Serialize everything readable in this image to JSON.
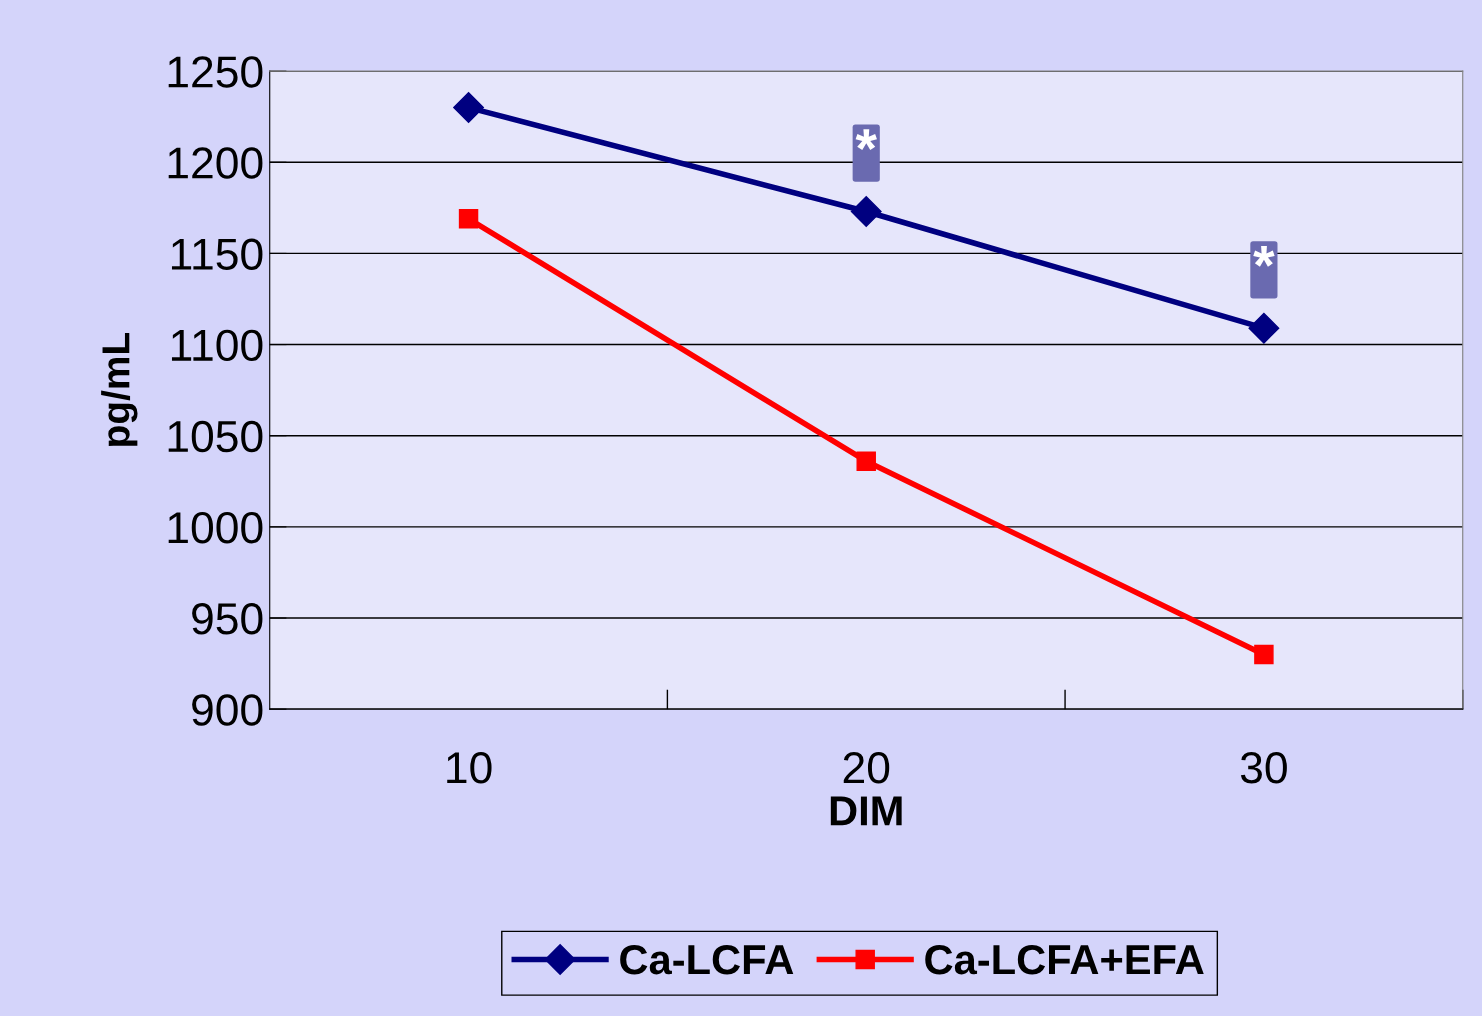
{
  "chart_data": {
    "type": "line",
    "xlabel": "DIM",
    "ylabel": "pg/mL",
    "categories": [
      "10",
      "20",
      "30"
    ],
    "series": [
      {
        "name": "Ca-LCFA",
        "color": "#000080",
        "values": [
          1230,
          1173,
          1109
        ],
        "marker": "diamond"
      },
      {
        "name": "Ca-LCFA+EFA",
        "color": "#ff0000",
        "values": [
          1169,
          1036,
          930
        ],
        "marker": "square"
      }
    ],
    "ylim": [
      900,
      1250
    ],
    "yticks": [
      900,
      950,
      1000,
      1050,
      1100,
      1150,
      1200,
      1250
    ],
    "grid": "y",
    "legend": "bottom",
    "line_style": "solid",
    "annotations": [
      {
        "text": "*",
        "x": "20",
        "y": 1173
      },
      {
        "text": "*",
        "x": "30",
        "y": 1109
      }
    ]
  }
}
